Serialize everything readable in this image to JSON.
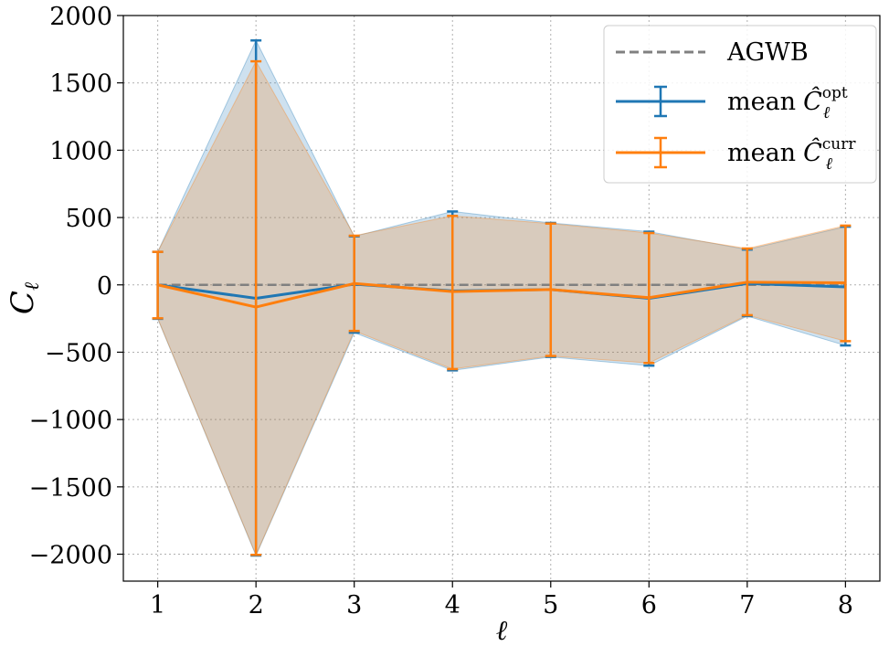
{
  "chart_data": {
    "type": "line",
    "xlabel": "ℓ",
    "ylabel": "C",
    "ylabel_sub": "ℓ",
    "xlim": [
      0.65,
      8.35
    ],
    "ylim": [
      -2200,
      2000
    ],
    "x_ticks": [
      "1",
      "2",
      "3",
      "4",
      "5",
      "6",
      "7",
      "8"
    ],
    "y_ticks": [
      "2000",
      "1500",
      "1000",
      "500",
      "0",
      "−500",
      "−1000",
      "−1500",
      "−2000"
    ],
    "grid": true,
    "legend_position": "top-right",
    "x": [
      1,
      2,
      3,
      4,
      5,
      6,
      7,
      8
    ],
    "series": [
      {
        "name": "AGWB",
        "style": "dashed",
        "color": "#808080",
        "values": [
          0,
          0,
          0,
          0,
          0,
          0,
          0,
          0
        ]
      },
      {
        "name_prefix": "mean",
        "name_symbol": "Ĉ",
        "name_sup": "opt",
        "name_sub": "ℓ",
        "color": "#1f77b4",
        "values": [
          0,
          -100,
          5,
          -45,
          -35,
          -100,
          10,
          -15
        ],
        "err_upper": [
          245,
          1815,
          360,
          545,
          460,
          395,
          262,
          432
        ],
        "err_lower": [
          -252,
          -2010,
          -355,
          -635,
          -535,
          -600,
          -232,
          -450
        ]
      },
      {
        "name_prefix": "mean",
        "name_symbol": "Ĉ",
        "name_sup": "curr",
        "name_sub": "ℓ",
        "color": "#ff7f0e",
        "values": [
          0,
          -165,
          10,
          -50,
          -35,
          -95,
          20,
          15
        ],
        "err_upper": [
          245,
          1660,
          365,
          512,
          455,
          385,
          270,
          440
        ],
        "err_lower": [
          -248,
          -2005,
          -342,
          -625,
          -528,
          -580,
          -225,
          -418
        ]
      }
    ]
  }
}
